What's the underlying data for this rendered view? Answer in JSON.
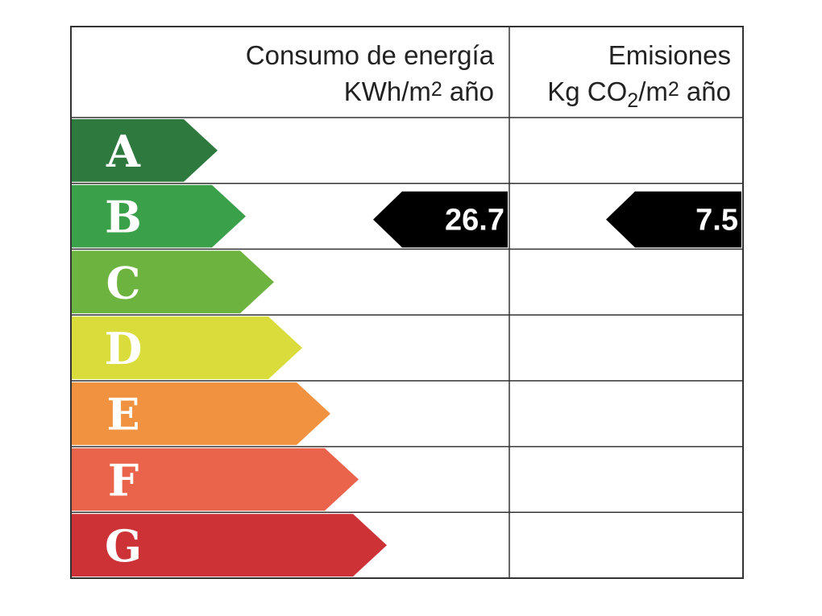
{
  "header": {
    "energy_title": "Consumo de energía",
    "energy_unit": [
      "KWh/m",
      "2",
      " año"
    ],
    "emissions_title": "Emisiones",
    "emissions_unit": [
      "Kg CO",
      "2",
      "/m",
      "2",
      " año"
    ]
  },
  "classes": [
    {
      "label": "A",
      "color": "#2e7a3e"
    },
    {
      "label": "B",
      "color": "#3aa04a"
    },
    {
      "label": "C",
      "color": "#6db33f"
    },
    {
      "label": "D",
      "color": "#d9dc3a"
    },
    {
      "label": "E",
      "color": "#f0923f"
    },
    {
      "label": "F",
      "color": "#ea634b"
    },
    {
      "label": "G",
      "color": "#cc3236"
    }
  ],
  "energy": {
    "class": "B",
    "value": 26.7
  },
  "emissions": {
    "class": "B",
    "value": 7.5
  }
}
